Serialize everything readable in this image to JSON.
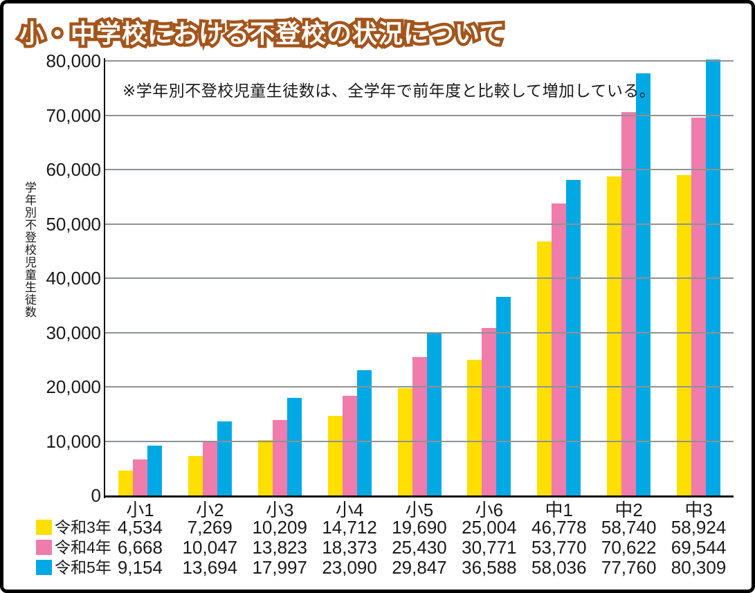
{
  "title": "小・中学校における不登校の状況について",
  "note": "※学年別不登校児童生徒数は、全学年で前年度と比較して増加している。",
  "y_axis_title": "学年別不登校児童生徒数",
  "colors": {
    "title_fill": "#FFFFFF",
    "title_outline": "#A4551C",
    "gridline": "#8E9194",
    "axis": "#111111",
    "text": "#1A1A1A",
    "frame": "#000000"
  },
  "chart_data": {
    "type": "bar",
    "title": "小・中学校における不登校の状況について",
    "annotation": "※学年別不登校児童生徒数は、全学年で前年度と比較して増加している。",
    "xlabel": "",
    "ylabel": "学年別不登校児童生徒数",
    "categories": [
      "小1",
      "小2",
      "小3",
      "小4",
      "小5",
      "小6",
      "中1",
      "中2",
      "中3"
    ],
    "series": [
      {
        "name": "令和3年",
        "color": "#FFDF00",
        "values": [
          4534,
          7269,
          10209,
          14712,
          19690,
          25004,
          46778,
          58740,
          58924
        ]
      },
      {
        "name": "令和4年",
        "color": "#F07CAC",
        "values": [
          6668,
          10047,
          13823,
          18373,
          25430,
          30771,
          53770,
          70622,
          69544
        ]
      },
      {
        "name": "令和5年",
        "color": "#00A9E4",
        "values": [
          9154,
          13694,
          17997,
          23090,
          29847,
          36588,
          58036,
          77760,
          80309
        ]
      }
    ],
    "ylim": [
      0,
      80000
    ],
    "ytick_step": 10000,
    "ytick_labels": [
      "0",
      "10,000",
      "20,000",
      "30,000",
      "40,000",
      "50,000",
      "60,000",
      "70,000",
      "80,000"
    ],
    "grid": true,
    "legend_position": "bottom-left-table"
  }
}
